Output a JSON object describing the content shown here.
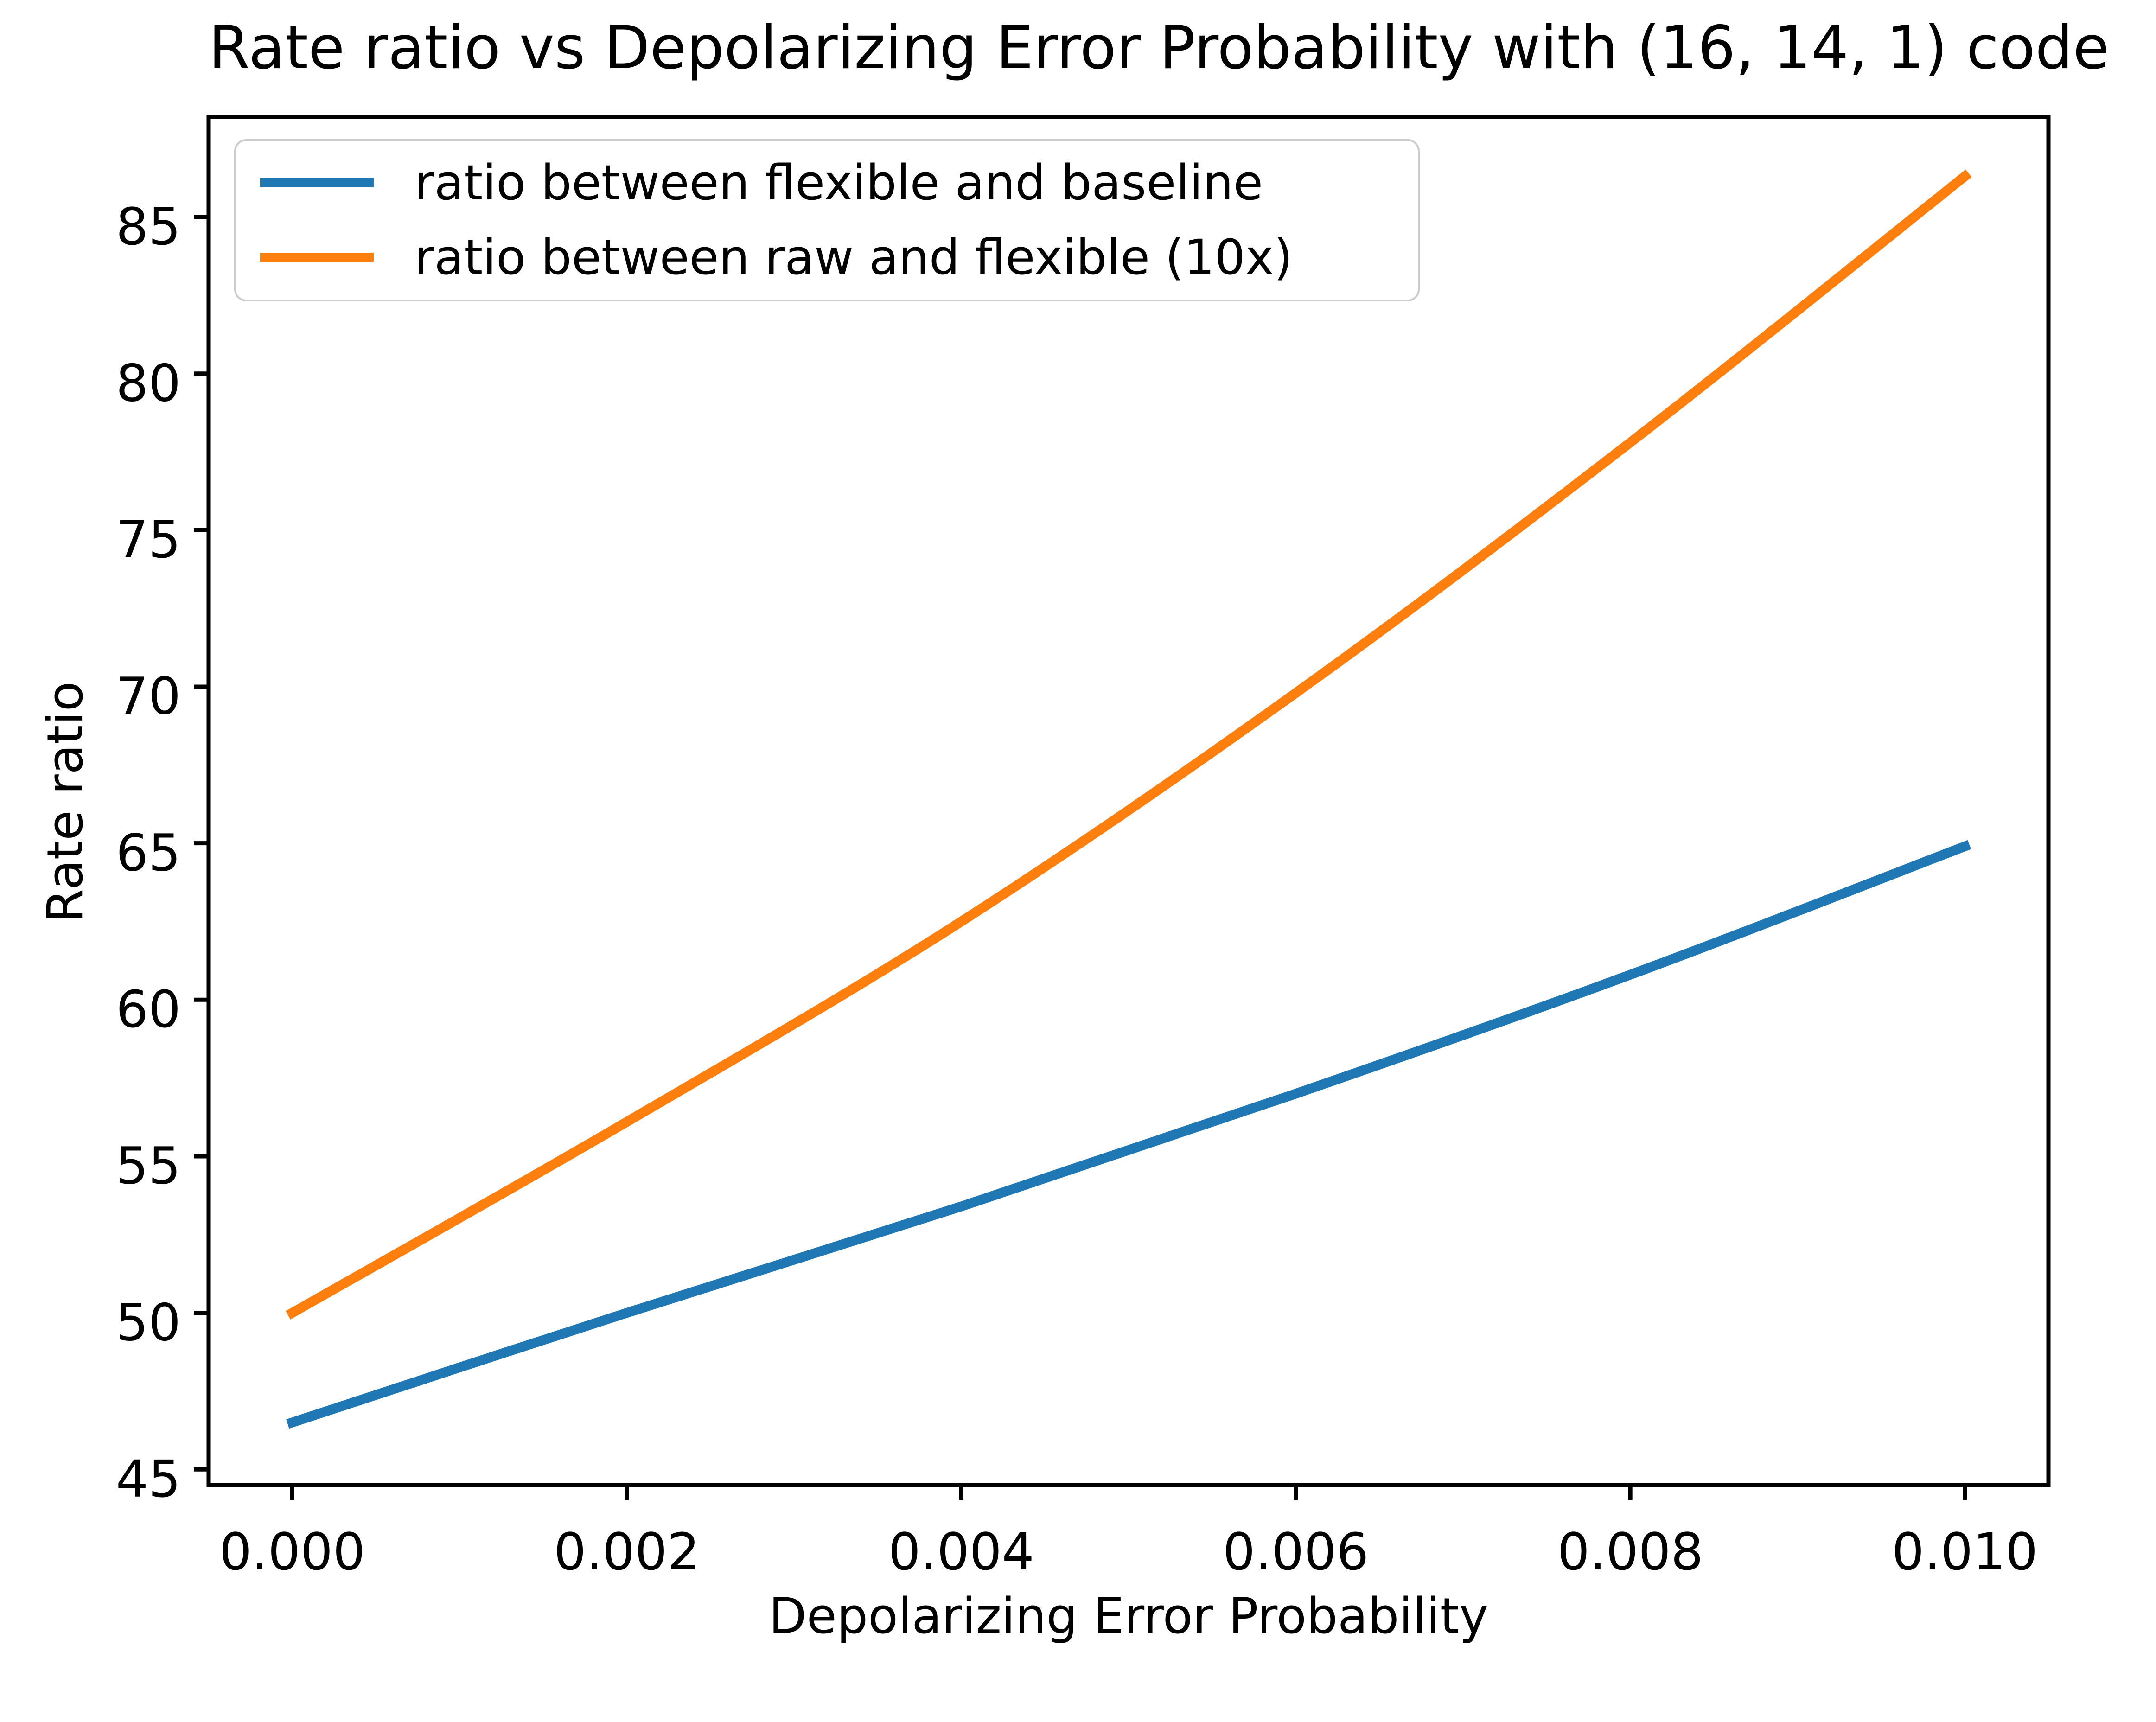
{
  "figure": {
    "background": "#ffffff",
    "text_color": "#000000",
    "spine_color": "#000000",
    "legend_border_color": "#cccccc"
  },
  "chart_data": {
    "type": "line",
    "title": "Rate ratio vs Depolarizing Error Probability with (16, 14, 1) code",
    "xlabel": "Depolarizing Error Probability",
    "ylabel": "Rate ratio",
    "xlim": [
      -0.0005,
      0.0105
    ],
    "ylim": [
      44.5,
      88.2
    ],
    "grid": false,
    "legend_position": "upper left",
    "xticks": {
      "values": [
        0.0,
        0.002,
        0.004,
        0.006,
        0.008,
        0.01
      ],
      "labels": [
        "0.000",
        "0.002",
        "0.004",
        "0.006",
        "0.008",
        "0.010"
      ]
    },
    "yticks": {
      "values": [
        45,
        50,
        55,
        60,
        65,
        70,
        75,
        80,
        85
      ],
      "labels": [
        "45",
        "50",
        "55",
        "60",
        "65",
        "70",
        "75",
        "80",
        "85"
      ]
    },
    "series": [
      {
        "name": "ratio between flexible and baseline",
        "color": "#1f77b4",
        "x": [
          0.0,
          0.002,
          0.004,
          0.006,
          0.008,
          0.01
        ],
        "y": [
          46.5,
          50.0,
          53.4,
          57.0,
          60.8,
          64.9
        ]
      },
      {
        "name": "ratio between raw and flexible (10x)",
        "color": "#ff7f0e",
        "x": [
          0.0,
          0.002,
          0.004,
          0.006,
          0.008,
          0.01
        ],
        "y": [
          50.0,
          56.1,
          62.5,
          69.8,
          77.8,
          86.3
        ]
      }
    ]
  }
}
